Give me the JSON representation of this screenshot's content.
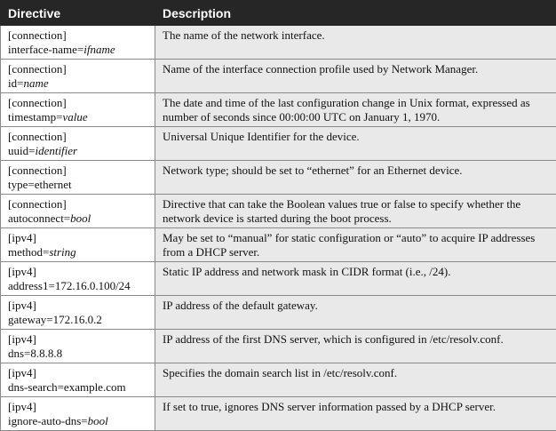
{
  "table": {
    "headers": {
      "directive": "Directive",
      "description": "Description"
    },
    "rows": [
      {
        "section": "[connection]",
        "key": "interface-name=",
        "value": "ifname",
        "description": "The name of the network interface."
      },
      {
        "section": "[connection]",
        "key": "id=",
        "value": "name",
        "description": "Name of the interface connection profile used by Network Manager."
      },
      {
        "section": "[connection]",
        "key": "timestamp=",
        "value": "value",
        "description": "The date and time of the last configuration change in Unix format, expressed as number of seconds since 00:00:00 UTC on January 1, 1970."
      },
      {
        "section": "[connection]",
        "key": "uuid=",
        "value": "identifier",
        "description": "Universal Unique Identifier for the device."
      },
      {
        "section": "[connection]",
        "key": "type=ethernet",
        "value": "",
        "description": "Network type; should be set to “ethernet” for an Ethernet device."
      },
      {
        "section": "[connection]",
        "key": "autoconnect=",
        "value": "bool",
        "description": "Directive that can take the Boolean values true or false to specify whether the network device is started during the boot process."
      },
      {
        "section": "[ipv4]",
        "key": "method=",
        "value": "string",
        "description": "May be set to “manual” for static configuration or “auto” to acquire IP addresses from a DHCP server."
      },
      {
        "section": "[ipv4]",
        "key": "address1=172.16.0.100/24",
        "value": "",
        "description": "Static IP address and network mask in CIDR format (i.e., /24)."
      },
      {
        "section": "[ipv4]",
        "key": "gateway=172.16.0.2",
        "value": "",
        "description": "IP address of the default gateway."
      },
      {
        "section": "[ipv4]",
        "key": "dns=8.8.8.8",
        "value": "",
        "description": "IP address of the first DNS server, which is configured in /etc/resolv.conf."
      },
      {
        "section": "[ipv4]",
        "key": "dns-search=example.com",
        "value": "",
        "description": "Specifies the domain search list in /etc/resolv.conf."
      },
      {
        "section": "[ipv4]",
        "key": "ignore-auto-dns=",
        "value": "bool",
        "description": "If set to true, ignores DNS server information passed by a DHCP server."
      }
    ]
  }
}
